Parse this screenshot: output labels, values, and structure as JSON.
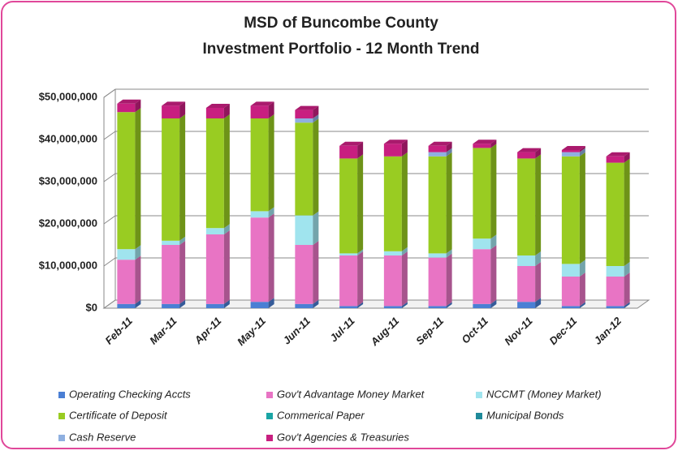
{
  "chart_data": {
    "type": "stacked-bar-3d",
    "title": [
      "MSD of Buncombe County",
      "Investment Portfolio - 12 Month Trend"
    ],
    "categories": [
      "Feb-11",
      "Mar-11",
      "Apr-11",
      "May-11",
      "Jun-11",
      "Jul-11",
      "Aug-11",
      "Sep-11",
      "Oct-11",
      "Nov-11",
      "Dec-11",
      "Jan-12"
    ],
    "series": [
      {
        "name": "Operating Checking Accts",
        "color": "#4a7fd4",
        "values": [
          1000000,
          1000000,
          1000000,
          1500000,
          1000000,
          500000,
          500000,
          500000,
          1000000,
          1500000,
          500000,
          500000
        ]
      },
      {
        "name": "Gov't Advantage Money Market",
        "color": "#e874c4",
        "values": [
          10500000,
          14000000,
          16500000,
          20000000,
          14000000,
          12000000,
          12000000,
          11500000,
          13000000,
          8500000,
          7000000,
          7000000
        ]
      },
      {
        "name": "NCCMT (Money Market)",
        "color": "#a0e4ee",
        "values": [
          2500000,
          1000000,
          1500000,
          1500000,
          7000000,
          500000,
          1000000,
          1000000,
          2500000,
          2500000,
          3000000,
          2500000
        ]
      },
      {
        "name": "Certificate of Deposit",
        "color": "#99cc22",
        "values": [
          32500000,
          29000000,
          26000000,
          22000000,
          22000000,
          22500000,
          22500000,
          23000000,
          21500000,
          23000000,
          25500000,
          24500000
        ]
      },
      {
        "name": "Commerical Paper",
        "color": "#1aa5a5",
        "values": [
          0,
          0,
          0,
          0,
          0,
          0,
          0,
          0,
          0,
          0,
          0,
          0
        ]
      },
      {
        "name": "Municipal Bonds",
        "color": "#1f8a9a",
        "values": [
          0,
          0,
          0,
          0,
          0,
          0,
          0,
          0,
          0,
          0,
          0,
          0
        ]
      },
      {
        "name": "Cash  Reserve",
        "color": "#8fb0e0",
        "values": [
          0,
          0,
          0,
          0,
          1000000,
          0,
          0,
          1000000,
          0,
          0,
          1000000,
          0
        ]
      },
      {
        "name": "Gov't Agencies & Treasuries",
        "color": "#c81f80",
        "values": [
          2000000,
          3000000,
          2500000,
          3000000,
          2000000,
          3000000,
          3000000,
          1500000,
          1000000,
          1500000,
          500000,
          1500000
        ]
      }
    ],
    "ylim": [
      0,
      50000000
    ],
    "yticks": [
      {
        "value": 0,
        "label": "$0"
      },
      {
        "value": 10000000,
        "label": "$10,000,000"
      },
      {
        "value": 20000000,
        "label": "$20,000,000"
      },
      {
        "value": 30000000,
        "label": "$30,000,000"
      },
      {
        "value": 40000000,
        "label": "$40,000,000"
      },
      {
        "value": 50000000,
        "label": "$50,000,000"
      }
    ],
    "grid": true
  }
}
